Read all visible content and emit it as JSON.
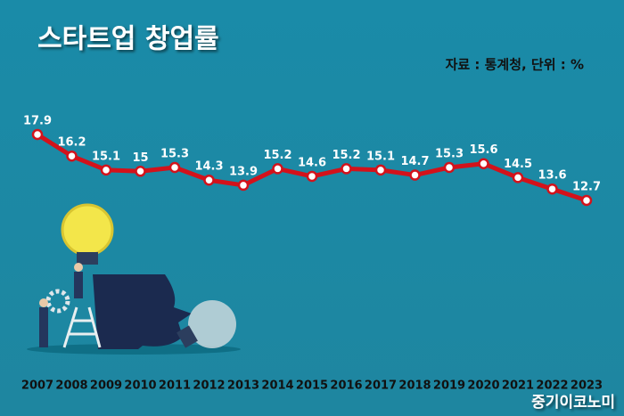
{
  "chart_data": {
    "type": "line",
    "title": "스타트업 창업률",
    "subtitle": "자료 : 통계청, 단위 : %",
    "annotations": [
      "중기이코노미"
    ],
    "categories": [
      "2007",
      "2008",
      "2009",
      "2010",
      "2011",
      "2012",
      "2013",
      "2014",
      "2015",
      "2016",
      "2017",
      "2018",
      "2019",
      "2020",
      "2021",
      "2022",
      "2023"
    ],
    "values": [
      17.9,
      16.2,
      15.1,
      15,
      15.3,
      14.3,
      13.9,
      15.2,
      14.6,
      15.2,
      15.1,
      14.7,
      15.3,
      15.6,
      14.5,
      13.6,
      12.7
    ],
    "color": "#d3121b"
  }
}
